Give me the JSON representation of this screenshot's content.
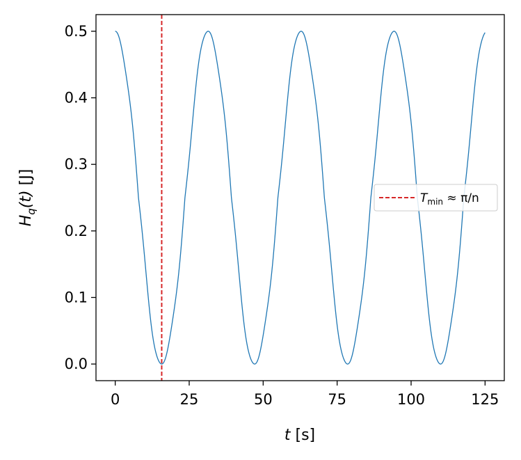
{
  "chart_data": {
    "type": "line",
    "xlabel": {
      "var": "t",
      "unit": "[s]"
    },
    "ylabel": {
      "var": "H",
      "sub": "q",
      "arg": "(t)",
      "unit": "[J]"
    },
    "xlim": [
      -6.5,
      131.5
    ],
    "ylim": [
      -0.025,
      0.525
    ],
    "xticks": [
      0,
      25,
      50,
      75,
      100,
      125
    ],
    "xtick_labels": [
      "0",
      "25",
      "50",
      "75",
      "100",
      "125"
    ],
    "yticks": [
      0.0,
      0.1,
      0.2,
      0.3,
      0.4,
      0.5
    ],
    "ytick_labels": [
      "0.0",
      "0.1",
      "0.2",
      "0.3",
      "0.4",
      "0.5"
    ],
    "grid": false,
    "legend": {
      "placement": "center-right"
    },
    "series": [
      {
        "function": "0.5*cos^2(n*t/2) with plateau ripple",
        "n": 0.2,
        "t_range": [
          0,
          125
        ],
        "ripple_amplitude": 0.045,
        "ripple_frequency": 2.0,
        "color": "#1f77b4"
      }
    ],
    "annotations": [
      {
        "type": "vline",
        "x": 15.708,
        "style": "dashed",
        "color": "#d62728",
        "label": {
          "main": "T",
          "sub": "min",
          "rest": " ≈ π/n"
        }
      }
    ]
  }
}
